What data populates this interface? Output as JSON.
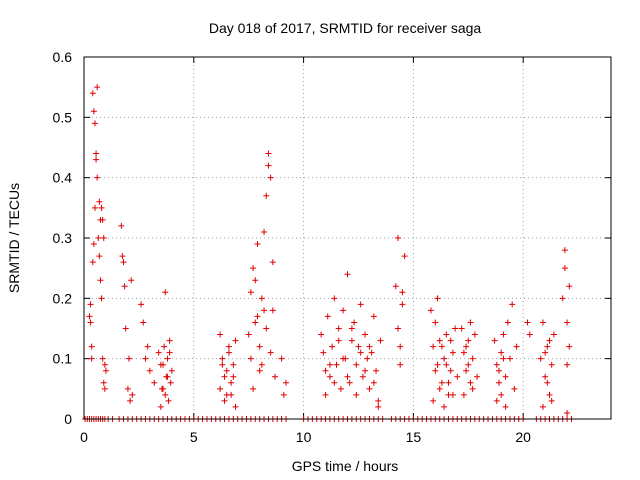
{
  "chart_data": {
    "type": "scatter",
    "title": "Day 018 of 2017, SRMTID for receiver saga",
    "xlabel": "GPS time / hours",
    "ylabel": "SRMTID / TECUs",
    "xlim": [
      0,
      24
    ],
    "ylim": [
      0,
      0.6
    ],
    "xticks": [
      0,
      5,
      10,
      15,
      20
    ],
    "yticks": [
      0,
      0.1,
      0.2,
      0.3,
      0.4,
      0.5,
      0.6
    ],
    "ytick_labels": [
      "0",
      "0.1",
      "0.2",
      "0.3",
      "0.4",
      "0.5",
      "0.6"
    ],
    "grid": true,
    "marker": "+",
    "series": [
      {
        "name": "SRMTID",
        "color": "#e00000",
        "x": [
          0.25,
          0.3,
          0.35,
          0.4,
          0.45,
          0.5,
          0.55,
          0.6,
          0.65,
          0.7,
          0.75,
          0.8,
          0.85,
          0.9,
          0.95,
          1.0,
          0.3,
          0.35,
          0.4,
          0.45,
          0.5,
          0.55,
          0.6,
          0.7,
          0.75,
          0.8,
          0.85,
          0.9,
          0.95,
          1.7,
          1.75,
          1.8,
          1.85,
          1.9,
          2.0,
          2.05,
          2.1,
          2.15,
          2.2,
          2.6,
          2.7,
          2.8,
          2.9,
          3.0,
          3.2,
          3.4,
          3.5,
          3.6,
          3.7,
          3.8,
          3.9,
          3.5,
          3.55,
          3.6,
          3.65,
          3.7,
          3.75,
          3.8,
          3.85,
          3.9,
          3.95,
          4.0,
          6.2,
          6.3,
          6.4,
          6.5,
          6.6,
          6.7,
          6.8,
          6.9,
          6.2,
          6.3,
          6.4,
          6.5,
          6.6,
          6.7,
          6.8,
          6.9,
          7.5,
          7.6,
          7.7,
          7.8,
          7.9,
          8.0,
          8.1,
          8.2,
          8.3,
          8.4,
          8.5,
          8.6,
          8.7,
          7.6,
          7.7,
          7.8,
          7.9,
          8.0,
          8.1,
          8.2,
          8.3,
          8.4,
          8.5,
          8.6,
          9.0,
          9.1,
          9.2,
          10.8,
          10.9,
          11.0,
          11.1,
          11.2,
          11.3,
          11.4,
          11.5,
          11.6,
          11.7,
          11.8,
          11.9,
          12.0,
          12.1,
          12.2,
          12.3,
          12.4,
          12.5,
          12.6,
          12.7,
          12.8,
          12.9,
          13.0,
          13.1,
          13.2,
          13.3,
          13.4,
          13.5,
          11.0,
          11.2,
          11.4,
          11.6,
          11.8,
          12.0,
          12.2,
          12.4,
          12.6,
          12.8,
          13.0,
          13.2,
          13.4,
          14.2,
          14.3,
          14.4,
          14.5,
          14.6,
          14.3,
          14.4,
          14.5,
          15.8,
          15.9,
          16.0,
          16.1,
          16.2,
          16.3,
          16.4,
          16.5,
          16.6,
          16.7,
          16.8,
          16.9,
          17.0,
          15.9,
          16.0,
          16.1,
          16.2,
          16.3,
          16.4,
          16.5,
          16.6,
          16.7,
          16.8,
          17.2,
          17.3,
          17.4,
          17.5,
          17.6,
          17.7,
          17.8,
          17.9,
          17.3,
          17.4,
          17.5,
          17.6,
          17.7,
          18.7,
          18.8,
          18.9,
          19.0,
          19.1,
          19.2,
          19.3,
          19.4,
          19.5,
          19.6,
          19.7,
          18.8,
          18.9,
          19.0,
          19.1,
          19.2,
          20.2,
          20.3,
          20.8,
          20.9,
          21.0,
          21.1,
          21.2,
          21.3,
          21.4,
          20.9,
          21.0,
          21.1,
          21.2,
          21.3,
          21.8,
          21.9,
          22.0,
          22.1,
          21.9,
          22.0,
          22.1,
          22.0,
          0.05,
          0.15,
          0.25,
          0.35,
          0.45,
          0.55,
          0.65,
          0.75,
          0.85,
          0.95,
          1.1,
          1.3,
          1.6,
          1.8,
          2.0,
          2.2,
          2.4,
          2.6,
          2.8,
          3.0,
          3.2,
          3.4,
          3.6,
          3.8,
          4.0,
          4.2,
          4.4,
          4.6,
          4.8,
          5.0,
          5.2,
          5.4,
          5.6,
          5.8,
          6.0,
          6.2,
          6.4,
          6.6,
          6.8,
          7.0,
          7.2,
          7.4,
          7.6,
          7.8,
          8.0,
          8.2,
          8.4,
          8.6,
          8.8,
          9.0,
          9.2,
          10.0,
          10.2,
          10.4,
          10.6,
          10.8,
          11.0,
          11.2,
          11.4,
          11.6,
          11.8,
          12.0,
          12.2,
          12.4,
          12.6,
          12.8,
          13.0,
          13.2,
          13.4,
          13.6,
          14.0,
          14.2,
          14.4,
          14.6,
          14.8,
          15.0,
          15.2,
          15.4,
          15.6,
          15.8,
          16.0,
          16.2,
          16.4,
          16.6,
          16.8,
          17.0,
          17.2,
          17.4,
          17.6,
          17.8,
          18.0,
          18.2,
          18.4,
          18.6,
          18.8,
          19.0,
          19.2,
          19.4,
          19.6,
          19.8,
          20.0,
          20.6,
          20.8,
          21.0,
          21.2,
          21.4,
          21.6,
          21.8,
          22.0,
          22.2
        ],
        "y": [
          0.17,
          0.19,
          0.12,
          0.26,
          0.29,
          0.35,
          0.44,
          0.55,
          0.3,
          0.36,
          0.33,
          0.2,
          0.1,
          0.06,
          0.05,
          0.08,
          0.16,
          0.1,
          0.54,
          0.51,
          0.49,
          0.43,
          0.4,
          0.27,
          0.23,
          0.35,
          0.33,
          0.3,
          0.09,
          0.32,
          0.27,
          0.26,
          0.22,
          0.15,
          0.05,
          0.1,
          0.03,
          0.23,
          0.04,
          0.19,
          0.16,
          0.1,
          0.12,
          0.08,
          0.06,
          0.11,
          0.09,
          0.05,
          0.21,
          0.07,
          0.13,
          0.02,
          0.05,
          0.09,
          0.12,
          0.04,
          0.07,
          0.1,
          0.03,
          0.11,
          0.06,
          0.08,
          0.14,
          0.1,
          0.07,
          0.04,
          0.12,
          0.06,
          0.09,
          0.02,
          0.05,
          0.09,
          0.03,
          0.08,
          0.11,
          0.04,
          0.07,
          0.13,
          0.14,
          0.21,
          0.25,
          0.16,
          0.29,
          0.12,
          0.09,
          0.18,
          0.37,
          0.44,
          0.4,
          0.26,
          0.07,
          0.1,
          0.05,
          0.23,
          0.17,
          0.08,
          0.2,
          0.31,
          0.15,
          0.42,
          0.11,
          0.18,
          0.1,
          0.04,
          0.06,
          0.14,
          0.11,
          0.08,
          0.17,
          0.07,
          0.12,
          0.2,
          0.09,
          0.15,
          0.05,
          0.18,
          0.1,
          0.24,
          0.06,
          0.13,
          0.16,
          0.09,
          0.12,
          0.19,
          0.07,
          0.14,
          0.1,
          0.05,
          0.11,
          0.17,
          0.08,
          0.03,
          0.13,
          0.04,
          0.09,
          0.06,
          0.13,
          0.1,
          0.07,
          0.15,
          0.04,
          0.11,
          0.08,
          0.12,
          0.06,
          0.02,
          0.22,
          0.3,
          0.12,
          0.19,
          0.27,
          0.15,
          0.09,
          0.21,
          0.18,
          0.12,
          0.16,
          0.09,
          0.13,
          0.06,
          0.1,
          0.14,
          0.04,
          0.08,
          0.11,
          0.15,
          0.07,
          0.03,
          0.08,
          0.2,
          0.05,
          0.12,
          0.02,
          0.09,
          0.06,
          0.13,
          0.04,
          0.15,
          0.11,
          0.08,
          0.13,
          0.06,
          0.1,
          0.14,
          0.07,
          0.04,
          0.12,
          0.09,
          0.16,
          0.05,
          0.13,
          0.09,
          0.06,
          0.11,
          0.14,
          0.07,
          0.16,
          0.1,
          0.19,
          0.05,
          0.12,
          0.03,
          0.08,
          0.04,
          0.1,
          0.02,
          0.16,
          0.14,
          0.1,
          0.16,
          0.07,
          0.12,
          0.04,
          0.09,
          0.14,
          0.02,
          0.11,
          0.06,
          0.13,
          0.03,
          0.2,
          0.25,
          0.16,
          0.12,
          0.28,
          0.09,
          0.22,
          0.01,
          0,
          0,
          0,
          0,
          0,
          0,
          0,
          0,
          0,
          0,
          0,
          0,
          0,
          0,
          0,
          0,
          0,
          0,
          0,
          0,
          0,
          0,
          0,
          0,
          0,
          0,
          0,
          0,
          0,
          0,
          0,
          0,
          0,
          0,
          0,
          0,
          0,
          0,
          0,
          0,
          0,
          0,
          0,
          0,
          0,
          0,
          0,
          0,
          0,
          0,
          0,
          0,
          0,
          0,
          0,
          0,
          0,
          0,
          0,
          0,
          0,
          0,
          0,
          0,
          0,
          0,
          0,
          0,
          0,
          0,
          0,
          0,
          0,
          0,
          0,
          0,
          0,
          0,
          0,
          0,
          0,
          0,
          0,
          0,
          0,
          0,
          0,
          0,
          0,
          0,
          0,
          0,
          0,
          0,
          0,
          0,
          0,
          0,
          0,
          0,
          0,
          0,
          0,
          0,
          0,
          0,
          0,
          0,
          0,
          0
        ]
      }
    ]
  }
}
